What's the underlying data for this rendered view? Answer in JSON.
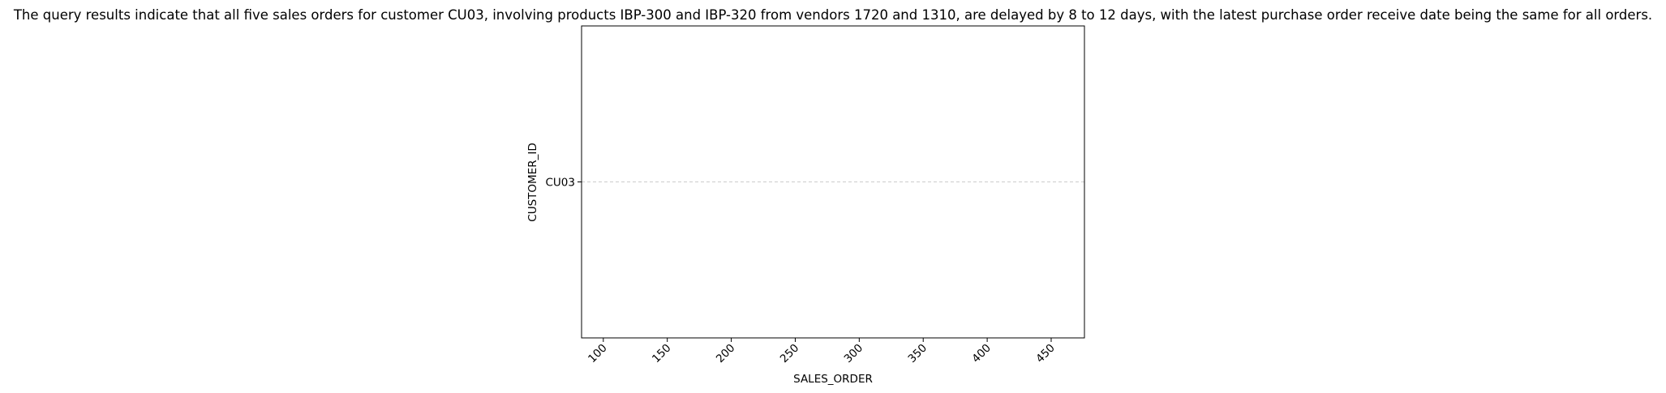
{
  "chart_data": {
    "type": "scatter",
    "title": "The query results indicate that all five sales orders for customer CU03, involving products IBP-300 and IBP-320 from vendors 1720 and 1310, are delayed by 8 to 12 days, with the latest purchase order receive date being the same for all orders.",
    "xlabel": "SALES_ORDER",
    "ylabel": "CUSTOMER_ID",
    "x_ticks": [
      100,
      150,
      200,
      250,
      300,
      350,
      400,
      450
    ],
    "xlim": [
      83,
      476
    ],
    "y_categories": [
      "CU03"
    ],
    "grid": {
      "y": true,
      "x": false,
      "style": "dashed"
    },
    "series": [],
    "colors": {
      "grid": "#cccccc",
      "axes": "#000000"
    }
  }
}
